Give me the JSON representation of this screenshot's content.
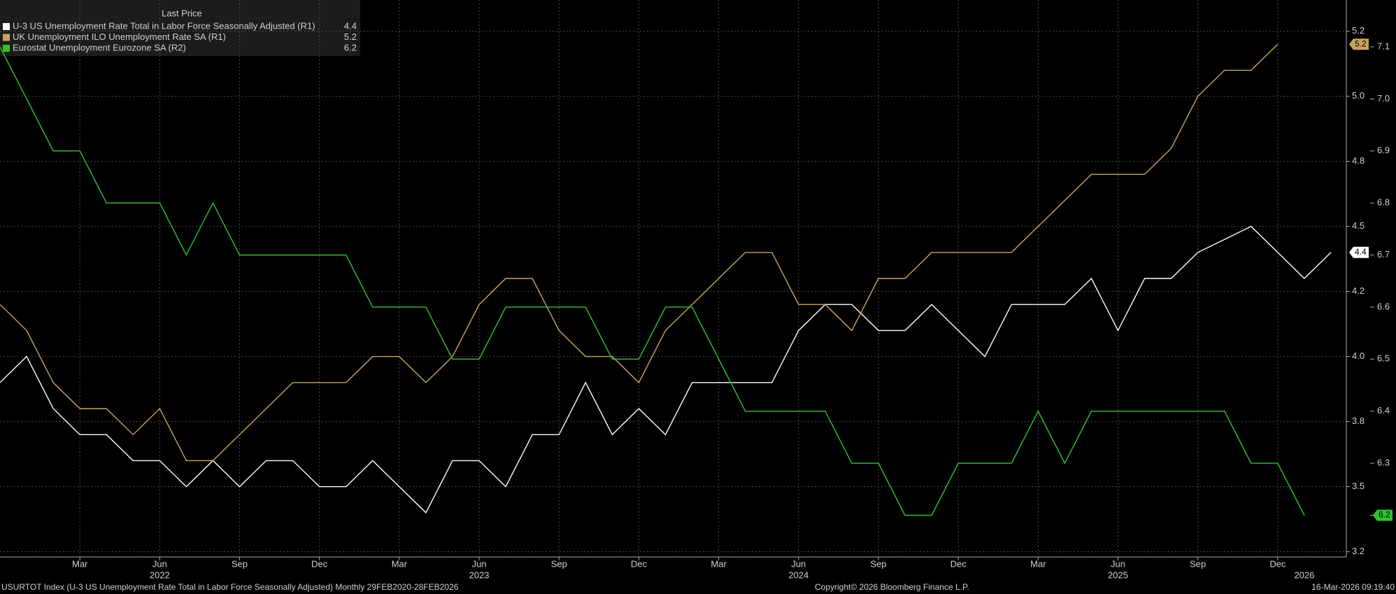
{
  "chart_data": {
    "type": "line",
    "legend_title": "Last Price",
    "x": [
      "2021-12",
      "2022-01",
      "2022-02",
      "2022-03",
      "2022-04",
      "2022-05",
      "2022-06",
      "2022-07",
      "2022-08",
      "2022-09",
      "2022-10",
      "2022-11",
      "2022-12",
      "2023-01",
      "2023-02",
      "2023-03",
      "2023-04",
      "2023-05",
      "2023-06",
      "2023-07",
      "2023-08",
      "2023-09",
      "2023-10",
      "2023-11",
      "2023-12",
      "2024-01",
      "2024-02",
      "2024-03",
      "2024-04",
      "2024-05",
      "2024-06",
      "2024-07",
      "2024-08",
      "2024-09",
      "2024-10",
      "2024-11",
      "2024-12",
      "2025-01",
      "2025-02",
      "2025-03",
      "2025-04",
      "2025-05",
      "2025-06",
      "2025-07",
      "2025-08",
      "2025-09",
      "2025-10",
      "2025-11",
      "2025-12",
      "2026-01",
      "2026-02"
    ],
    "series": [
      {
        "name": "U-3 US Unemployment Rate Total in Labor Force Seasonally Adjusted  (R1)",
        "color": "#ffffff",
        "axis": "y",
        "values": [
          3.9,
          4.0,
          3.8,
          3.7,
          3.7,
          3.6,
          3.6,
          3.5,
          3.6,
          3.5,
          3.6,
          3.6,
          3.5,
          3.5,
          3.6,
          3.5,
          3.4,
          3.6,
          3.6,
          3.5,
          3.7,
          3.7,
          3.9,
          3.7,
          3.8,
          3.7,
          3.9,
          3.9,
          3.9,
          3.9,
          4.1,
          4.2,
          4.2,
          4.1,
          4.1,
          4.2,
          4.1,
          4.0,
          4.2,
          4.2,
          4.2,
          4.3,
          4.1,
          4.3,
          4.3,
          4.4,
          4.45,
          4.5,
          4.4,
          4.3,
          4.4
        ]
      },
      {
        "name": "UK Unemployment ILO Unemployment Rate SA  (R1)",
        "color": "#c9a55c",
        "axis": "y",
        "values": [
          4.2,
          4.1,
          3.9,
          3.8,
          3.8,
          3.7,
          3.8,
          3.6,
          3.6,
          3.7,
          3.8,
          3.9,
          3.9,
          3.9,
          4.0,
          4.0,
          3.9,
          4.0,
          4.2,
          4.3,
          4.3,
          4.1,
          4.0,
          4.0,
          3.9,
          4.1,
          4.2,
          4.3,
          4.4,
          4.4,
          4.2,
          4.2,
          4.1,
          4.3,
          4.3,
          4.4,
          4.4,
          4.4,
          4.4,
          4.5,
          4.6,
          4.7,
          4.7,
          4.7,
          4.8,
          5.0,
          5.1,
          5.1,
          5.2,
          null,
          null
        ]
      },
      {
        "name": "Eurostat Unemployment Eurozone SA  (R2)",
        "color": "#2fc42f",
        "axis": "y2",
        "values": [
          7.1,
          7.0,
          6.9,
          6.9,
          6.8,
          6.8,
          6.8,
          6.7,
          6.8,
          6.7,
          6.7,
          6.7,
          6.7,
          6.7,
          6.6,
          6.6,
          6.6,
          6.5,
          6.5,
          6.6,
          6.6,
          6.6,
          6.6,
          6.5,
          6.5,
          6.6,
          6.6,
          6.5,
          6.4,
          6.4,
          6.4,
          6.4,
          6.3,
          6.3,
          6.2,
          6.2,
          6.3,
          6.3,
          6.3,
          6.4,
          6.3,
          6.4,
          6.4,
          6.4,
          6.4,
          6.4,
          6.4,
          6.3,
          6.3,
          6.2,
          null
        ]
      }
    ],
    "ylim": [
      3.23,
      5.37
    ],
    "yticks": [
      {
        "value": 5.25,
        "label": "5.2"
      },
      {
        "value": 5.0,
        "label": "5.0"
      },
      {
        "value": 4.75,
        "label": "4.8"
      },
      4.5,
      {
        "value": 4.25,
        "label": "4.2"
      },
      {
        "value": 4.0,
        "label": "4.0"
      },
      {
        "value": 3.75,
        "label": "3.8"
      },
      3.5,
      {
        "value": 3.25,
        "label": "3.2"
      }
    ],
    "y2lim": [
      6.12,
      7.19
    ],
    "y2ticks": [
      7.1,
      {
        "value": 7.0,
        "label": "7.0"
      },
      6.9,
      6.8,
      6.7,
      6.6,
      6.5,
      6.4,
      6.3,
      6.2
    ],
    "xticks": [
      {
        "value": "2022-03",
        "label": "Mar"
      },
      {
        "value": "2022-06",
        "label": "Jun"
      },
      {
        "value": "2022-09",
        "label": "Sep"
      },
      {
        "value": "2022-12",
        "label": "Dec"
      },
      {
        "value": "2023-03",
        "label": "Mar"
      },
      {
        "value": "2023-06",
        "label": "Jun"
      },
      {
        "value": "2023-09",
        "label": "Sep"
      },
      {
        "value": "2023-12",
        "label": "Dec"
      },
      {
        "value": "2024-03",
        "label": "Mar"
      },
      {
        "value": "2024-06",
        "label": "Jun"
      },
      {
        "value": "2024-09",
        "label": "Sep"
      },
      {
        "value": "2024-12",
        "label": "Dec"
      },
      {
        "value": "2025-03",
        "label": "Mar"
      },
      {
        "value": "2025-06",
        "label": "Jun"
      },
      {
        "value": "2025-09",
        "label": "Sep"
      },
      {
        "value": "2025-12",
        "label": "Dec"
      }
    ],
    "x_year_ticks": [
      {
        "value": "2022-06",
        "label": "2022"
      },
      {
        "value": "2023-06",
        "label": "2023"
      },
      {
        "value": "2024-06",
        "label": "2024"
      },
      {
        "value": "2025-06",
        "label": "2025"
      },
      {
        "value": "2026-01",
        "label": "2026"
      }
    ],
    "grid": true,
    "footer": {
      "left": "USURTOT Index (U-3 US Unemployment Rate Total in Labor Force Seasonally Adjusted) Monthly 29FEB2020-28FEB2026",
      "center": "Copyright© 2026 Bloomberg Finance L.P.",
      "right": "16-Mar-2026 09:19:40"
    }
  }
}
